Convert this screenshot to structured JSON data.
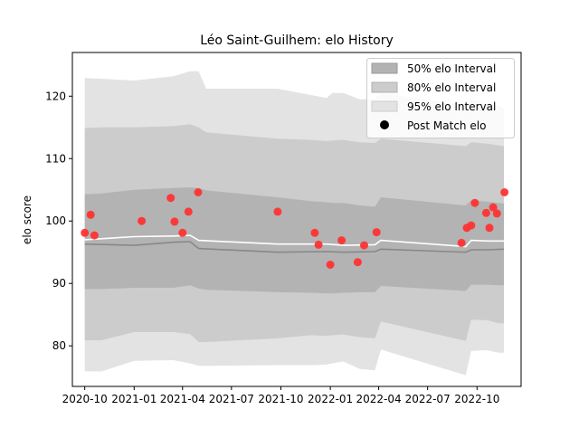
{
  "chart_data": {
    "type": "area",
    "title": "Léo Saint-Guilhem: elo History",
    "xlabel": "",
    "ylabel": "elo score",
    "xlim": [
      "2020-09-08",
      "2022-12-22"
    ],
    "ylim": [
      73.5,
      127
    ],
    "x_ticks": [
      "2020-10-01",
      "2021-01-01",
      "2021-04-01",
      "2021-07-01",
      "2021-10-01",
      "2022-01-01",
      "2022-04-01",
      "2022-07-01",
      "2022-10-01"
    ],
    "x_tick_labels": [
      "2020-10",
      "2021-01",
      "2021-04",
      "2021-07",
      "2021-10",
      "2022-01",
      "2022-04",
      "2022-07",
      "2022-10"
    ],
    "y_ticks": [
      80,
      90,
      100,
      110,
      120
    ],
    "y_tick_labels": [
      "80",
      "90",
      "100",
      "110",
      "120"
    ],
    "legend_position": "top-right",
    "legend": [
      "50% elo Interval",
      "80% elo Interval",
      "95% elo Interval",
      "Post Match elo"
    ],
    "colors": {
      "band50": "#b3b3b3",
      "band80": "#cccccc",
      "band95": "#e3e3e3",
      "median_line": "#888888",
      "mean_line": "#ffffff",
      "points": "#ff3333"
    },
    "series": [
      {
        "name": "95% elo Interval",
        "kind": "band",
        "x": [
          "2020-10-01",
          "2020-11-01",
          "2021-01-01",
          "2021-03-15",
          "2021-04-15",
          "2021-05-01",
          "2021-05-15",
          "2021-09-25",
          "2021-11-25",
          "2021-12-25",
          "2022-01-05",
          "2022-01-25",
          "2022-02-25",
          "2022-03-25",
          "2022-04-05",
          "2022-09-10",
          "2022-09-20",
          "2022-10-20",
          "2022-11-10",
          "2022-11-20"
        ],
        "upper": [
          122.9,
          122.8,
          122.5,
          123.2,
          124.0,
          124.0,
          121.2,
          121.2,
          120.2,
          119.7,
          120.5,
          120.5,
          119.5,
          119.5,
          120.5,
          118.5,
          119.5,
          118.7,
          118.5,
          118.0
        ],
        "lower": [
          75.9,
          75.9,
          77.6,
          77.7,
          77.2,
          76.8,
          76.8,
          76.9,
          76.9,
          77.0,
          77.2,
          77.5,
          76.3,
          76.1,
          79.4,
          75.3,
          79.2,
          79.3,
          78.9,
          78.9
        ]
      },
      {
        "name": "80% elo Interval",
        "kind": "band",
        "x": [
          "2020-10-01",
          "2020-11-01",
          "2021-01-01",
          "2021-03-15",
          "2021-04-15",
          "2021-05-01",
          "2021-05-15",
          "2021-09-25",
          "2021-11-25",
          "2021-12-25",
          "2022-01-05",
          "2022-01-25",
          "2022-02-25",
          "2022-03-25",
          "2022-04-05",
          "2022-09-10",
          "2022-09-20",
          "2022-10-20",
          "2022-11-10",
          "2022-11-20"
        ],
        "upper": [
          114.9,
          115.0,
          115.0,
          115.2,
          115.5,
          115.0,
          114.2,
          113.2,
          113.0,
          112.8,
          112.9,
          113.0,
          112.6,
          112.5,
          113.2,
          112.0,
          112.6,
          112.4,
          112.1,
          112.0
        ],
        "lower": [
          80.9,
          80.9,
          82.2,
          82.2,
          81.9,
          80.6,
          80.6,
          81.2,
          81.7,
          81.6,
          81.7,
          81.8,
          81.4,
          81.2,
          83.9,
          80.8,
          84.2,
          84.1,
          83.6,
          83.6
        ]
      },
      {
        "name": "50% elo Interval",
        "kind": "band",
        "x": [
          "2020-10-01",
          "2020-11-01",
          "2021-01-01",
          "2021-03-15",
          "2021-04-15",
          "2021-05-01",
          "2021-05-15",
          "2021-09-25",
          "2021-11-25",
          "2021-12-25",
          "2022-01-05",
          "2022-01-25",
          "2022-02-25",
          "2022-03-25",
          "2022-04-05",
          "2022-09-10",
          "2022-09-20",
          "2022-10-20",
          "2022-11-10",
          "2022-11-20"
        ],
        "upper": [
          104.3,
          104.4,
          105.0,
          105.3,
          105.4,
          105.3,
          104.9,
          103.8,
          103.2,
          103.0,
          102.9,
          102.9,
          102.5,
          102.3,
          103.8,
          102.5,
          103.3,
          103.1,
          102.9,
          102.8
        ],
        "lower": [
          89.1,
          89.1,
          89.3,
          89.3,
          89.7,
          89.2,
          89.0,
          88.6,
          88.5,
          88.4,
          88.4,
          88.5,
          88.6,
          88.6,
          89.6,
          88.8,
          89.8,
          89.8,
          89.7,
          89.7
        ]
      },
      {
        "name": "median",
        "kind": "line",
        "x": [
          "2020-10-01",
          "2021-01-01",
          "2021-03-15",
          "2021-04-15",
          "2021-05-01",
          "2021-09-25",
          "2021-12-25",
          "2022-01-25",
          "2022-03-25",
          "2022-04-05",
          "2022-09-10",
          "2022-09-20",
          "2022-10-20",
          "2022-11-20"
        ],
        "values": [
          96.3,
          96.1,
          96.6,
          96.7,
          95.6,
          95.0,
          95.1,
          95.0,
          95.1,
          95.5,
          95.0,
          95.4,
          95.4,
          95.5
        ]
      },
      {
        "name": "mean",
        "kind": "line",
        "x": [
          "2020-10-01",
          "2021-01-01",
          "2021-03-15",
          "2021-04-15",
          "2021-05-01",
          "2021-09-25",
          "2021-12-25",
          "2022-01-25",
          "2022-03-25",
          "2022-04-05",
          "2022-09-10",
          "2022-09-20",
          "2022-10-20",
          "2022-11-20"
        ],
        "values": [
          97.0,
          97.5,
          97.6,
          97.7,
          96.9,
          96.3,
          96.3,
          96.1,
          96.2,
          96.9,
          95.9,
          96.9,
          96.8,
          96.8
        ]
      },
      {
        "name": "Post Match elo",
        "kind": "scatter",
        "x": [
          "2020-10-01",
          "2020-10-12",
          "2020-10-19",
          "2021-01-15",
          "2021-03-10",
          "2021-03-17",
          "2021-04-01",
          "2021-04-12",
          "2021-04-30",
          "2021-09-25",
          "2021-12-03",
          "2021-12-10",
          "2022-01-01",
          "2022-01-22",
          "2022-02-21",
          "2022-03-05",
          "2022-03-28",
          "2022-09-02",
          "2022-09-12",
          "2022-09-20",
          "2022-09-27",
          "2022-10-18",
          "2022-10-24",
          "2022-10-31",
          "2022-11-07",
          "2022-11-21"
        ],
        "values": [
          98.1,
          101.0,
          97.7,
          100.0,
          103.7,
          99.9,
          98.1,
          101.5,
          104.6,
          101.5,
          98.1,
          96.2,
          93.0,
          96.9,
          93.4,
          96.1,
          98.2,
          96.5,
          98.9,
          99.3,
          102.9,
          101.3,
          98.9,
          102.2,
          101.2,
          104.6
        ]
      }
    ]
  }
}
